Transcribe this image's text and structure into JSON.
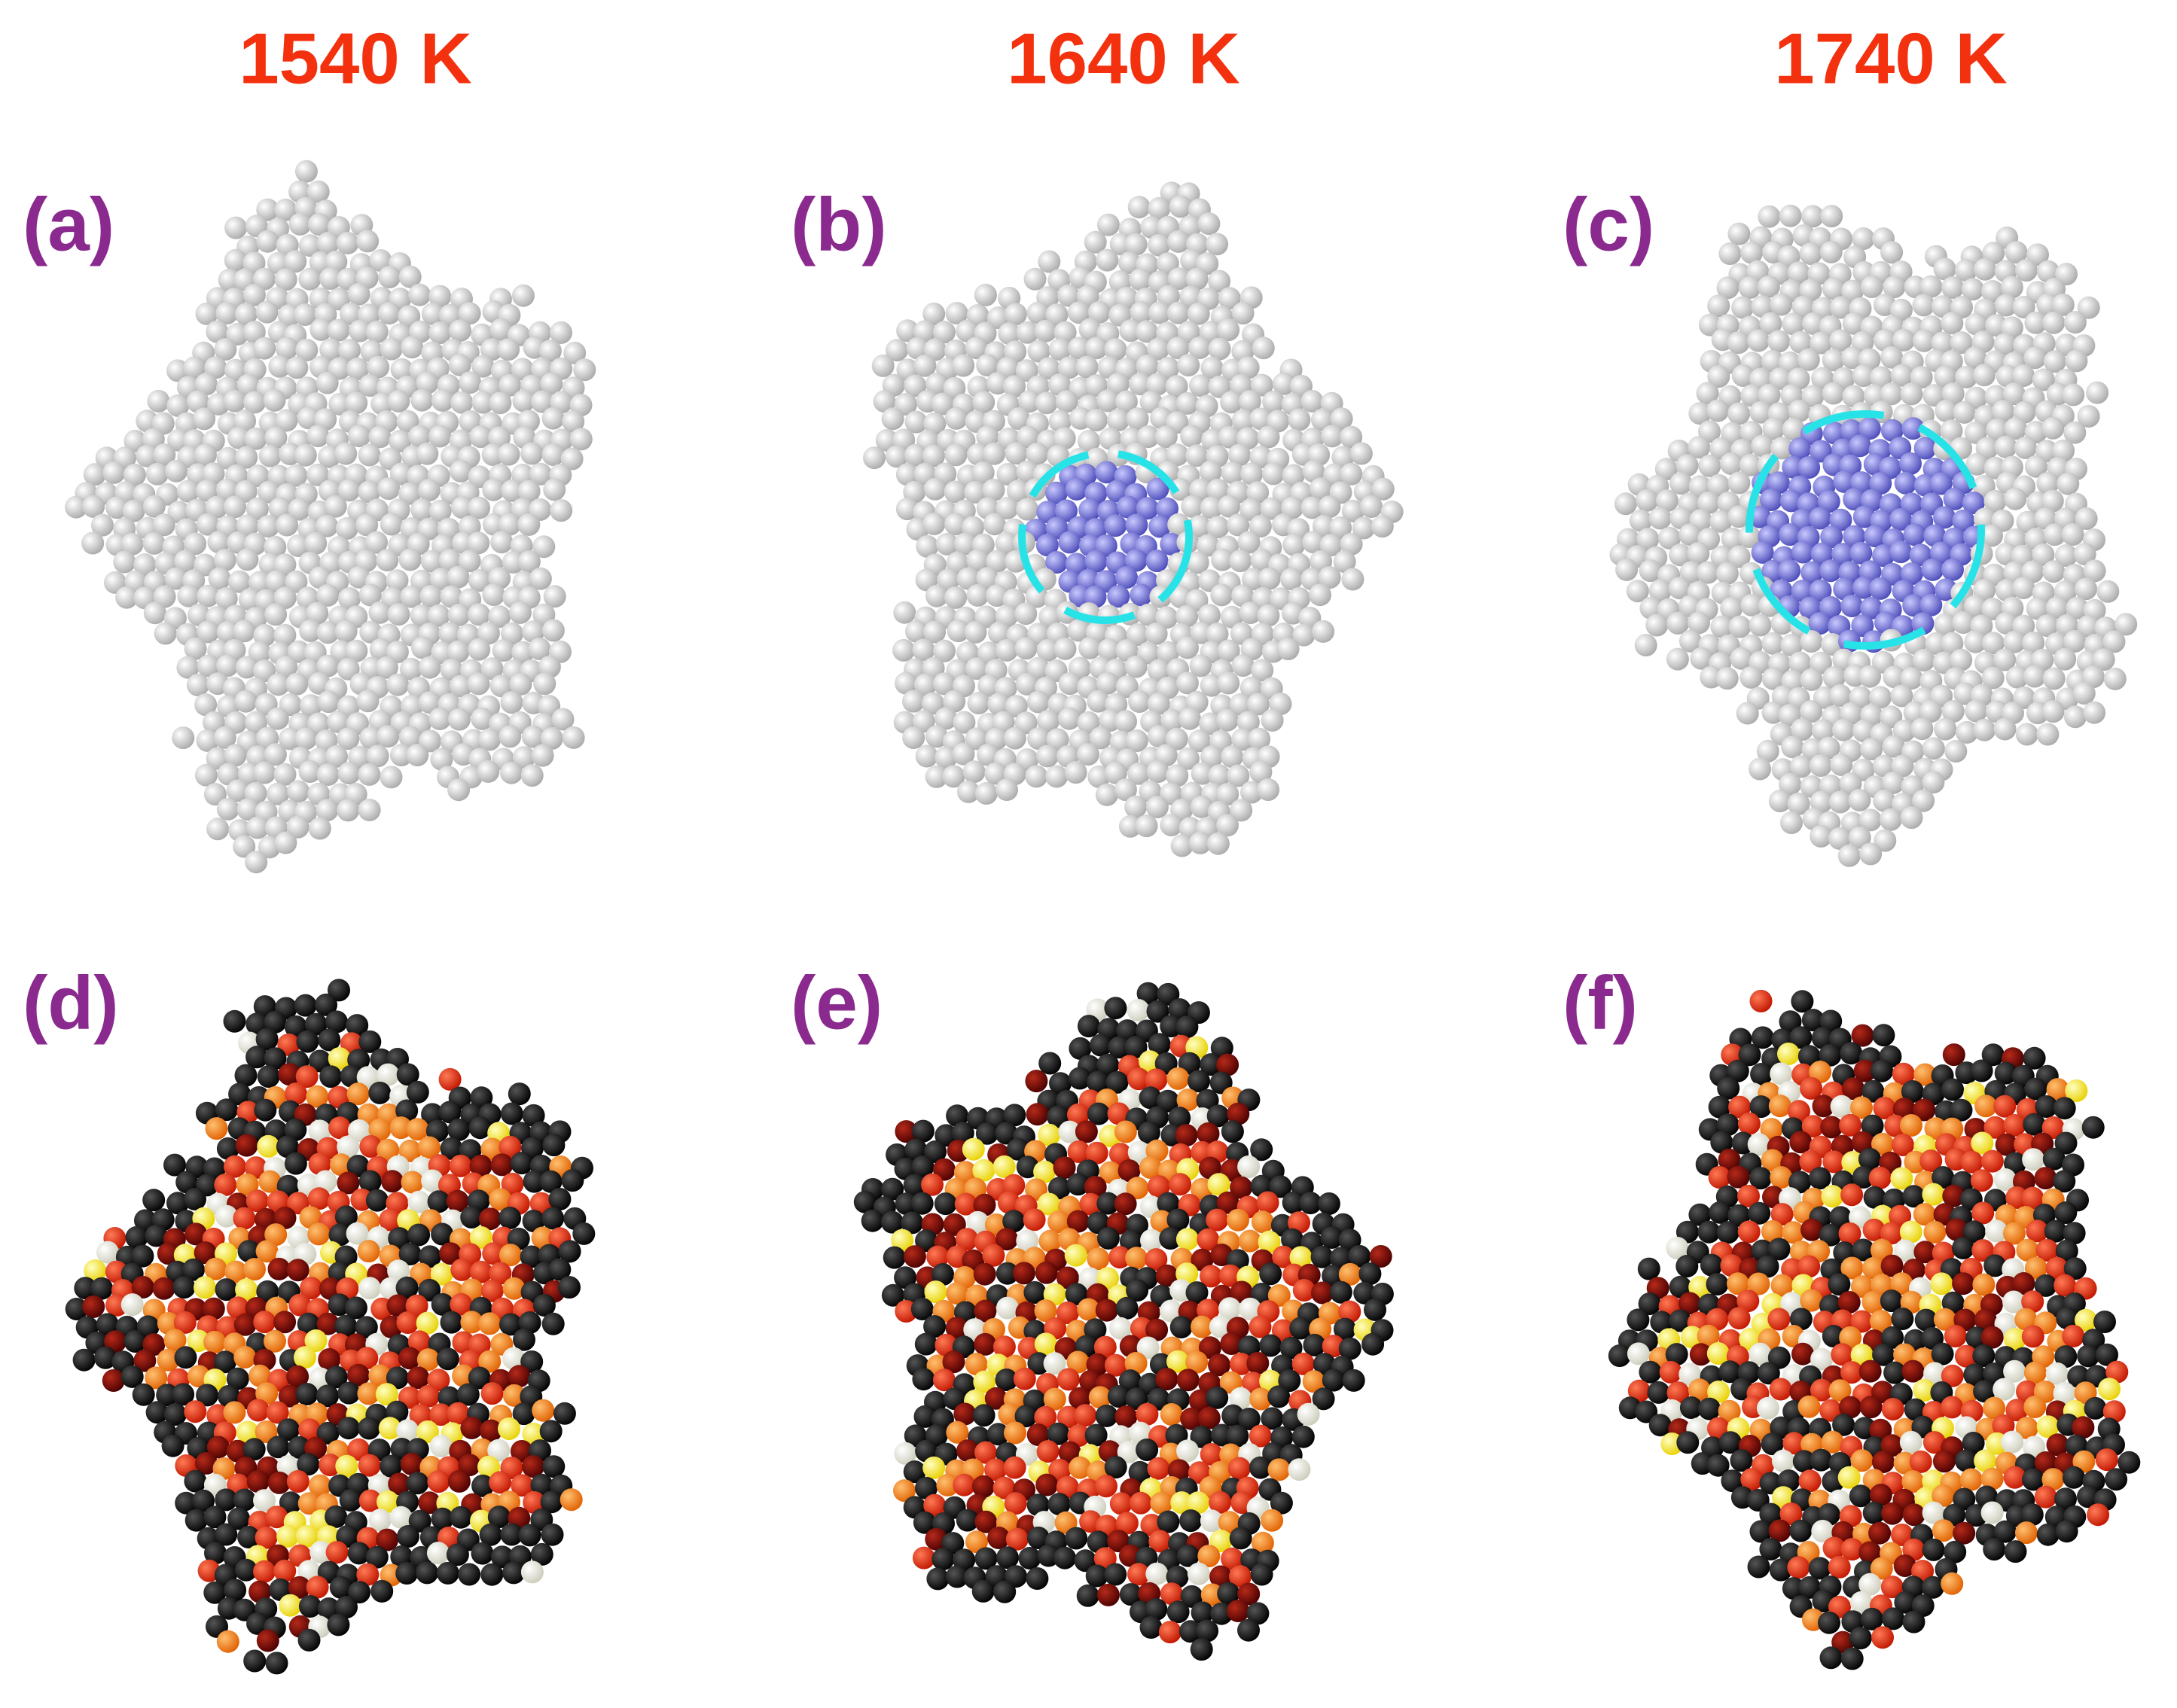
{
  "columns": [
    "1540 K",
    "1640 K",
    "1740 K"
  ],
  "panels": [
    "(a)",
    "(b)",
    "(c)",
    "(d)",
    "(e)",
    "(f)"
  ]
}
